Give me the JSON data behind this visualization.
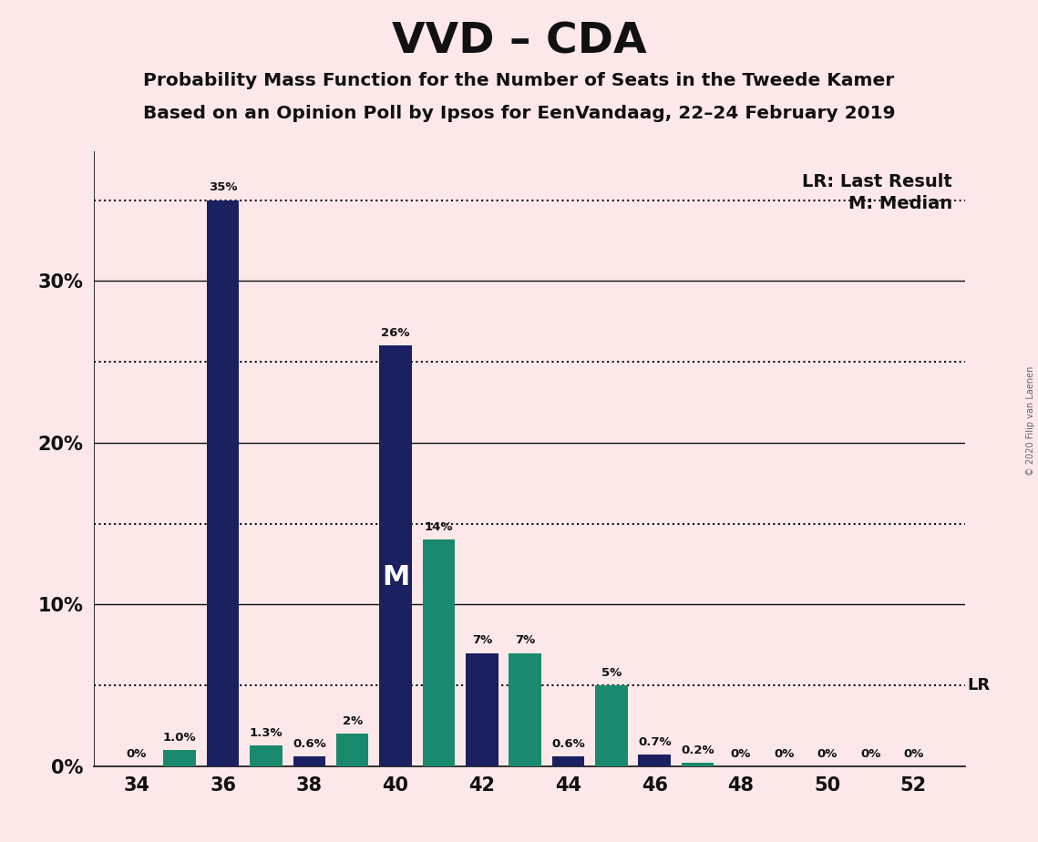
{
  "title": "VVD – CDA",
  "subtitle1": "Probability Mass Function for the Number of Seats in the Tweede Kamer",
  "subtitle2": "Based on an Opinion Poll by Ipsos for EenVandaag, 22–24 February 2019",
  "copyright": "© 2020 Filip van Laenen",
  "legend_lr": "LR: Last Result",
  "legend_m": "M: Median",
  "background_color": "#fce8e8",
  "bar_data": [
    {
      "seat": 34,
      "color": "#1a2060",
      "value": 0.0,
      "label": "0%",
      "party": "vvd"
    },
    {
      "seat": 35,
      "color": "#1a8a6e",
      "value": 1.0,
      "label": "1.0%",
      "party": "cda"
    },
    {
      "seat": 36,
      "color": "#1a2060",
      "value": 35.0,
      "label": "35%",
      "party": "vvd"
    },
    {
      "seat": 37,
      "color": "#1a8a6e",
      "value": 1.3,
      "label": "1.3%",
      "party": "cda"
    },
    {
      "seat": 38,
      "color": "#1a2060",
      "value": 0.6,
      "label": "0.6%",
      "party": "vvd"
    },
    {
      "seat": 39,
      "color": "#1a8a6e",
      "value": 2.0,
      "label": "2%",
      "party": "cda"
    },
    {
      "seat": 40,
      "color": "#1a2060",
      "value": 26.0,
      "label": "26%",
      "party": "vvd"
    },
    {
      "seat": 41,
      "color": "#1a8a6e",
      "value": 14.0,
      "label": "14%",
      "party": "cda"
    },
    {
      "seat": 42,
      "color": "#1a2060",
      "value": 7.0,
      "label": "7%",
      "party": "vvd"
    },
    {
      "seat": 43,
      "color": "#1a8a6e",
      "value": 7.0,
      "label": "7%",
      "party": "cda"
    },
    {
      "seat": 44,
      "color": "#1a2060",
      "value": 0.6,
      "label": "0.6%",
      "party": "vvd"
    },
    {
      "seat": 45,
      "color": "#1a8a6e",
      "value": 5.0,
      "label": "5%",
      "party": "cda"
    },
    {
      "seat": 46,
      "color": "#1a2060",
      "value": 0.7,
      "label": "0.7%",
      "party": "vvd"
    },
    {
      "seat": 47,
      "color": "#1a8a6e",
      "value": 0.2,
      "label": "0.2%",
      "party": "cda"
    },
    {
      "seat": 48,
      "color": "#1a2060",
      "value": 0.0,
      "label": "0%",
      "party": "vvd"
    },
    {
      "seat": 49,
      "color": "#1a8a6e",
      "value": 0.0,
      "label": "0%",
      "party": "cda"
    },
    {
      "seat": 50,
      "color": "#1a2060",
      "value": 0.0,
      "label": "0%",
      "party": "vvd"
    },
    {
      "seat": 51,
      "color": "#1a8a6e",
      "value": 0.0,
      "label": "0%",
      "party": "cda"
    },
    {
      "seat": 52,
      "color": "#1a2060",
      "value": 0.0,
      "label": "0%",
      "party": "vvd"
    }
  ],
  "bar_width": 0.75,
  "ylim_max": 38,
  "solid_lines": [
    10,
    20,
    30
  ],
  "dotted_lines": [
    5,
    15,
    25,
    35
  ],
  "lr_line": 5.0,
  "median_line": 35.0,
  "median_bar_seat": 40,
  "xticks": [
    34,
    36,
    38,
    40,
    42,
    44,
    46,
    48,
    50,
    52
  ],
  "ytick_positions": [
    0,
    10,
    20,
    30
  ],
  "ytick_labels": [
    "0%",
    "10%",
    "20%",
    "30%"
  ]
}
